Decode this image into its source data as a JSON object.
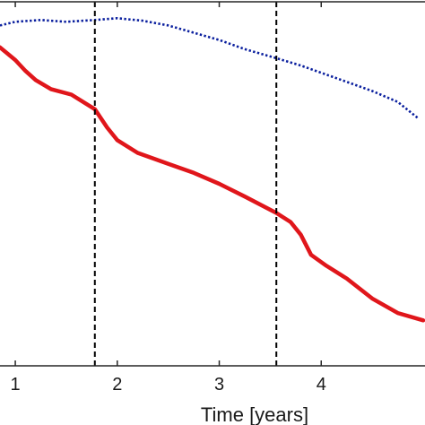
{
  "chart_data": {
    "type": "line",
    "xlabel": "Time [years]",
    "xlim": [
      0.85,
      5.0
    ],
    "ylim": [
      0.0,
      1.0
    ],
    "x_ticks": [
      1,
      2,
      3,
      4
    ],
    "grid": false,
    "vertical_markers": [
      1.78,
      3.56
    ],
    "series": [
      {
        "style": "dotted",
        "color": "#0a1f9e",
        "x": [
          0.85,
          1.0,
          1.25,
          1.5,
          1.78,
          2.0,
          2.25,
          2.5,
          2.75,
          3.0,
          3.25,
          3.56,
          3.8,
          4.0,
          4.25,
          4.5,
          4.75,
          4.95
        ],
        "y": [
          0.935,
          0.945,
          0.95,
          0.945,
          0.95,
          0.955,
          0.948,
          0.935,
          0.915,
          0.895,
          0.87,
          0.845,
          0.825,
          0.805,
          0.78,
          0.755,
          0.725,
          0.68
        ]
      },
      {
        "style": "solid",
        "color": "#e0161b",
        "x": [
          0.85,
          1.0,
          1.1,
          1.2,
          1.35,
          1.55,
          1.78,
          1.9,
          2.0,
          2.2,
          2.5,
          2.75,
          3.0,
          3.25,
          3.56,
          3.7,
          3.8,
          3.9,
          4.05,
          4.25,
          4.5,
          4.75,
          5.0
        ],
        "y": [
          0.875,
          0.84,
          0.81,
          0.785,
          0.76,
          0.745,
          0.705,
          0.655,
          0.62,
          0.585,
          0.555,
          0.53,
          0.5,
          0.465,
          0.42,
          0.395,
          0.36,
          0.305,
          0.275,
          0.24,
          0.185,
          0.145,
          0.125
        ]
      }
    ]
  },
  "colors": {
    "axis": "#262626",
    "marker_line": "#000000",
    "background": "#ffffff"
  }
}
